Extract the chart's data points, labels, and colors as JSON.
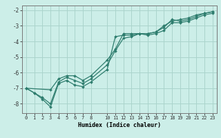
{
  "title": "",
  "xlabel": "Humidex (Indice chaleur)",
  "bg_color": "#cceee8",
  "grid_color": "#aad4cc",
  "line_color": "#2e7d6e",
  "xlim": [
    -0.5,
    23.5
  ],
  "ylim": [
    -8.6,
    -1.7
  ],
  "yticks": [
    -8,
    -7,
    -6,
    -5,
    -4,
    -3,
    -2
  ],
  "xticks": [
    0,
    1,
    2,
    3,
    4,
    5,
    6,
    7,
    8,
    10,
    11,
    12,
    13,
    14,
    15,
    16,
    17,
    18,
    19,
    20,
    21,
    22,
    23
  ],
  "line1_x": [
    0,
    1,
    2,
    3,
    4,
    5,
    6,
    7,
    8,
    10,
    11,
    12,
    13,
    14,
    15,
    16,
    17,
    18,
    19,
    20,
    21,
    22,
    23
  ],
  "line1_y": [
    -7.0,
    -7.3,
    -7.7,
    -8.2,
    -6.7,
    -6.5,
    -6.8,
    -6.9,
    -6.6,
    -5.8,
    -3.7,
    -3.6,
    -3.6,
    -3.5,
    -3.6,
    -3.5,
    -3.3,
    -2.8,
    -2.8,
    -2.7,
    -2.5,
    -2.3,
    -2.2
  ],
  "line2_x": [
    0,
    1,
    2,
    3,
    4,
    5,
    6,
    7,
    8,
    10,
    11,
    12,
    13,
    14,
    15,
    16,
    17,
    18,
    19,
    20,
    21,
    22,
    23
  ],
  "line2_y": [
    -7.0,
    -7.3,
    -7.6,
    -8.0,
    -6.6,
    -6.3,
    -6.5,
    -6.7,
    -6.4,
    -5.5,
    -4.6,
    -3.8,
    -3.7,
    -3.5,
    -3.5,
    -3.4,
    -3.1,
    -2.6,
    -2.7,
    -2.6,
    -2.4,
    -2.2,
    -2.1
  ],
  "line3_x": [
    0,
    3,
    4,
    5,
    6,
    7,
    8,
    10,
    11,
    12,
    13,
    14,
    15,
    16,
    17,
    18,
    19,
    20,
    21,
    22,
    23
  ],
  "line3_y": [
    -7.0,
    -7.1,
    -6.4,
    -6.2,
    -6.2,
    -6.5,
    -6.2,
    -5.2,
    -4.5,
    -3.5,
    -3.5,
    -3.5,
    -3.5,
    -3.4,
    -3.0,
    -2.7,
    -2.6,
    -2.5,
    -2.3,
    -2.2,
    -2.1
  ]
}
